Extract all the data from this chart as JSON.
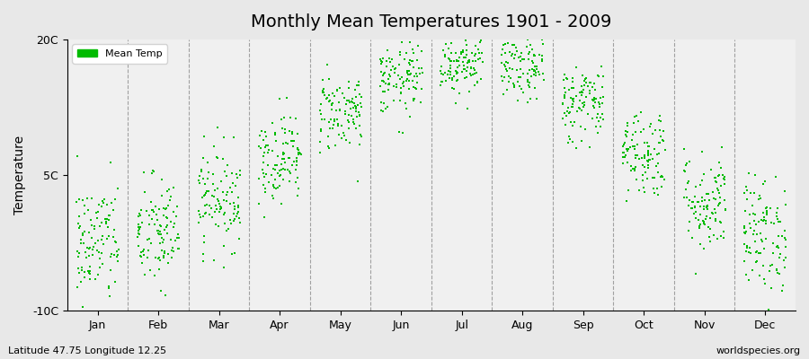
{
  "title": "Monthly Mean Temperatures 1901 - 2009",
  "ylabel": "Temperature",
  "subtitle_left": "Latitude 47.75 Longitude 12.25",
  "subtitle_right": "worldspecies.org",
  "legend_label": "Mean Temp",
  "ylim": [
    -10,
    20
  ],
  "yticks": [
    -10,
    5,
    20
  ],
  "ytick_labels": [
    "-10C",
    "5C",
    "20C"
  ],
  "months": [
    "Jan",
    "Feb",
    "Mar",
    "Apr",
    "May",
    "Jun",
    "Jul",
    "Aug",
    "Sep",
    "Oct",
    "Nov",
    "Dec"
  ],
  "background_color": "#e8e8e8",
  "plot_bg_color": "#f0f0f0",
  "dot_color": "#00bb00",
  "dot_size": 4,
  "years": 109,
  "monthly_means": [
    -2.5,
    -1.5,
    2.5,
    7.0,
    12.0,
    15.5,
    17.5,
    17.0,
    13.0,
    7.5,
    2.0,
    -1.5
  ],
  "monthly_stds": [
    3.5,
    3.2,
    2.8,
    2.5,
    2.2,
    2.0,
    1.8,
    2.0,
    2.2,
    2.5,
    2.8,
    3.2
  ],
  "seed": 42
}
